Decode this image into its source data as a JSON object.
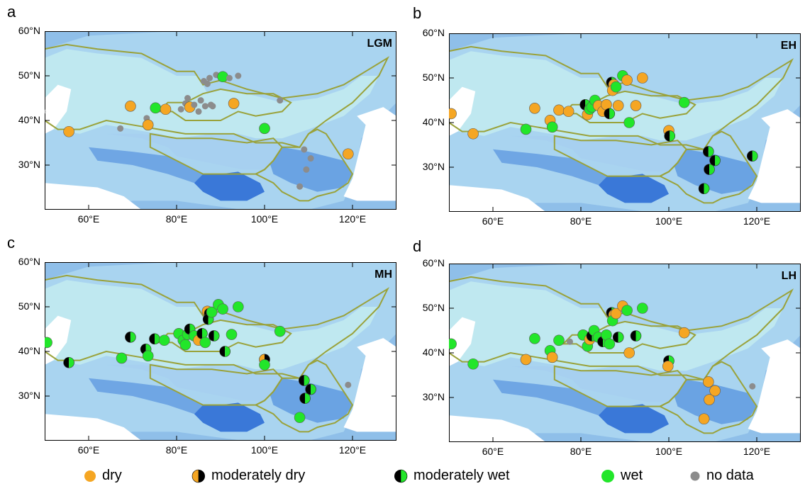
{
  "panels": [
    {
      "letter": "a",
      "title": "LGM",
      "lat_labels": [
        "60°N",
        "50°N",
        "40°N",
        "30°N"
      ],
      "lon_labels": [
        "60°E",
        "80°E",
        "100°E",
        "120°E"
      ],
      "sites": [
        {
          "lon": 49.5,
          "lat": 42.0,
          "c": "nodata"
        },
        {
          "lon": 55.5,
          "lat": 37.5,
          "c": "dry"
        },
        {
          "lon": 67.2,
          "lat": 38.2,
          "c": "nodata"
        },
        {
          "lon": 69.5,
          "lat": 43.2,
          "c": "dry"
        },
        {
          "lon": 73.2,
          "lat": 40.5,
          "c": "nodata"
        },
        {
          "lon": 73.5,
          "lat": 39.0,
          "c": "dry"
        },
        {
          "lon": 75.2,
          "lat": 42.8,
          "c": "wet"
        },
        {
          "lon": 77.5,
          "lat": 42.5,
          "c": "dry"
        },
        {
          "lon": 81.0,
          "lat": 42.5,
          "c": "nodata"
        },
        {
          "lon": 82.0,
          "lat": 43.8,
          "c": "nodata"
        },
        {
          "lon": 82.5,
          "lat": 45.0,
          "c": "nodata"
        },
        {
          "lon": 83.0,
          "lat": 43.0,
          "c": "dry"
        },
        {
          "lon": 84.0,
          "lat": 43.5,
          "c": "nodata"
        },
        {
          "lon": 85.0,
          "lat": 42.0,
          "c": "nodata"
        },
        {
          "lon": 85.5,
          "lat": 44.5,
          "c": "nodata"
        },
        {
          "lon": 86.5,
          "lat": 43.2,
          "c": "nodata"
        },
        {
          "lon": 86.2,
          "lat": 48.8,
          "c": "nodata"
        },
        {
          "lon": 87.0,
          "lat": 48.2,
          "c": "nodata"
        },
        {
          "lon": 87.8,
          "lat": 43.5,
          "c": "nodata"
        },
        {
          "lon": 88.2,
          "lat": 43.2,
          "c": "nodata"
        },
        {
          "lon": 87.5,
          "lat": 49.5,
          "c": "nodata"
        },
        {
          "lon": 89.0,
          "lat": 50.2,
          "c": "nodata"
        },
        {
          "lon": 90.5,
          "lat": 49.8,
          "c": "wet"
        },
        {
          "lon": 92.0,
          "lat": 49.5,
          "c": "nodata"
        },
        {
          "lon": 93.0,
          "lat": 43.8,
          "c": "dry"
        },
        {
          "lon": 94.0,
          "lat": 50.0,
          "c": "nodata"
        },
        {
          "lon": 100.0,
          "lat": 38.2,
          "c": "wet"
        },
        {
          "lon": 103.5,
          "lat": 44.5,
          "c": "nodata"
        },
        {
          "lon": 109.0,
          "lat": 33.5,
          "c": "nodata"
        },
        {
          "lon": 110.5,
          "lat": 31.5,
          "c": "nodata"
        },
        {
          "lon": 109.5,
          "lat": 29.0,
          "c": "nodata"
        },
        {
          "lon": 108.0,
          "lat": 25.2,
          "c": "nodata"
        },
        {
          "lon": 119.0,
          "lat": 32.5,
          "c": "dry"
        }
      ]
    },
    {
      "letter": "b",
      "title": "EH",
      "lat_labels": [
        "60°N",
        "50°N",
        "40°N",
        "30°N"
      ],
      "lon_labels": [
        "60°E",
        "80°E",
        "100°E",
        "120°E"
      ],
      "sites": [
        {
          "lon": 50.5,
          "lat": 42.0,
          "c": "dry"
        },
        {
          "lon": 55.5,
          "lat": 37.5,
          "c": "dry"
        },
        {
          "lon": 67.5,
          "lat": 38.5,
          "c": "wet"
        },
        {
          "lon": 69.5,
          "lat": 43.2,
          "c": "dry"
        },
        {
          "lon": 73.0,
          "lat": 40.5,
          "c": "dry"
        },
        {
          "lon": 73.5,
          "lat": 39.0,
          "c": "wet"
        },
        {
          "lon": 75.0,
          "lat": 42.8,
          "c": "dry"
        },
        {
          "lon": 77.2,
          "lat": 42.5,
          "c": "dry"
        },
        {
          "lon": 81.0,
          "lat": 44.0,
          "c": "mwet"
        },
        {
          "lon": 81.5,
          "lat": 41.8,
          "c": "dry"
        },
        {
          "lon": 82.0,
          "lat": 43.0,
          "c": "wet"
        },
        {
          "lon": 82.5,
          "lat": 43.5,
          "c": "wet"
        },
        {
          "lon": 83.2,
          "lat": 45.0,
          "c": "wet"
        },
        {
          "lon": 84.0,
          "lat": 43.8,
          "c": "dry"
        },
        {
          "lon": 85.0,
          "lat": 42.5,
          "c": "dry"
        },
        {
          "lon": 85.8,
          "lat": 44.0,
          "c": "dry"
        },
        {
          "lon": 86.5,
          "lat": 42.0,
          "c": "mwet"
        },
        {
          "lon": 87.0,
          "lat": 49.0,
          "c": "mwet"
        },
        {
          "lon": 87.5,
          "lat": 48.5,
          "c": "dry"
        },
        {
          "lon": 87.2,
          "lat": 47.2,
          "c": "dry"
        },
        {
          "lon": 88.0,
          "lat": 48.0,
          "c": "wet"
        },
        {
          "lon": 88.5,
          "lat": 43.8,
          "c": "dry"
        },
        {
          "lon": 89.5,
          "lat": 50.5,
          "c": "wet"
        },
        {
          "lon": 90.5,
          "lat": 49.5,
          "c": "dry"
        },
        {
          "lon": 91.0,
          "lat": 40.0,
          "c": "wet"
        },
        {
          "lon": 92.5,
          "lat": 43.8,
          "c": "dry"
        },
        {
          "lon": 94.0,
          "lat": 50.0,
          "c": "dry"
        },
        {
          "lon": 100.0,
          "lat": 38.2,
          "c": "dry"
        },
        {
          "lon": 100.2,
          "lat": 37.0,
          "c": "mwet"
        },
        {
          "lon": 103.5,
          "lat": 44.5,
          "c": "wet"
        },
        {
          "lon": 109.0,
          "lat": 33.5,
          "c": "mwet"
        },
        {
          "lon": 110.5,
          "lat": 31.5,
          "c": "mwet"
        },
        {
          "lon": 109.2,
          "lat": 29.5,
          "c": "mwet"
        },
        {
          "lon": 108.0,
          "lat": 25.2,
          "c": "mwet"
        },
        {
          "lon": 119.0,
          "lat": 32.5,
          "c": "mwet"
        }
      ]
    },
    {
      "letter": "c",
      "title": "MH",
      "lat_labels": [
        "60°N",
        "50°N",
        "40°N",
        "30°N"
      ],
      "lon_labels": [
        "60°E",
        "80°E",
        "100°E",
        "120°E"
      ],
      "sites": [
        {
          "lon": 50.5,
          "lat": 42.0,
          "c": "wet"
        },
        {
          "lon": 55.5,
          "lat": 37.5,
          "c": "mwet"
        },
        {
          "lon": 67.5,
          "lat": 38.5,
          "c": "wet"
        },
        {
          "lon": 69.5,
          "lat": 43.2,
          "c": "mwet"
        },
        {
          "lon": 73.0,
          "lat": 40.5,
          "c": "mwet"
        },
        {
          "lon": 73.5,
          "lat": 39.0,
          "c": "wet"
        },
        {
          "lon": 75.0,
          "lat": 42.8,
          "c": "mwet"
        },
        {
          "lon": 77.2,
          "lat": 42.5,
          "c": "wet"
        },
        {
          "lon": 80.5,
          "lat": 44.0,
          "c": "wet"
        },
        {
          "lon": 81.5,
          "lat": 42.5,
          "c": "wet"
        },
        {
          "lon": 82.0,
          "lat": 41.5,
          "c": "wet"
        },
        {
          "lon": 82.5,
          "lat": 43.8,
          "c": "wet"
        },
        {
          "lon": 83.0,
          "lat": 45.0,
          "c": "mwet"
        },
        {
          "lon": 84.0,
          "lat": 43.5,
          "c": "wet"
        },
        {
          "lon": 85.0,
          "lat": 42.5,
          "c": "dry"
        },
        {
          "lon": 85.8,
          "lat": 44.0,
          "c": "mwet"
        },
        {
          "lon": 86.5,
          "lat": 42.0,
          "c": "wet"
        },
        {
          "lon": 87.0,
          "lat": 49.0,
          "c": "dry"
        },
        {
          "lon": 87.5,
          "lat": 48.5,
          "c": "mwet"
        },
        {
          "lon": 87.2,
          "lat": 47.2,
          "c": "mwet"
        },
        {
          "lon": 88.0,
          "lat": 48.8,
          "c": "wet"
        },
        {
          "lon": 88.5,
          "lat": 43.5,
          "c": "mwet"
        },
        {
          "lon": 89.5,
          "lat": 50.5,
          "c": "wet"
        },
        {
          "lon": 90.5,
          "lat": 49.5,
          "c": "wet"
        },
        {
          "lon": 91.0,
          "lat": 40.0,
          "c": "mwet"
        },
        {
          "lon": 92.5,
          "lat": 43.8,
          "c": "wet"
        },
        {
          "lon": 94.0,
          "lat": 50.0,
          "c": "wet"
        },
        {
          "lon": 100.0,
          "lat": 38.2,
          "c": "mdry"
        },
        {
          "lon": 100.0,
          "lat": 37.0,
          "c": "wet"
        },
        {
          "lon": 103.5,
          "lat": 44.5,
          "c": "wet"
        },
        {
          "lon": 109.0,
          "lat": 33.5,
          "c": "mwet"
        },
        {
          "lon": 110.5,
          "lat": 31.5,
          "c": "mwet"
        },
        {
          "lon": 109.2,
          "lat": 29.5,
          "c": "mwet"
        },
        {
          "lon": 108.0,
          "lat": 25.2,
          "c": "wet"
        },
        {
          "lon": 119.0,
          "lat": 32.5,
          "c": "nodata"
        }
      ]
    },
    {
      "letter": "d",
      "title": "LH",
      "lat_labels": [
        "60°N",
        "50°N",
        "40°N",
        "30°N"
      ],
      "lon_labels": [
        "60°E",
        "80°E",
        "100°E",
        "120°E"
      ],
      "sites": [
        {
          "lon": 50.5,
          "lat": 42.0,
          "c": "wet"
        },
        {
          "lon": 55.5,
          "lat": 37.5,
          "c": "wet"
        },
        {
          "lon": 67.5,
          "lat": 38.5,
          "c": "dry"
        },
        {
          "lon": 69.5,
          "lat": 43.2,
          "c": "wet"
        },
        {
          "lon": 73.0,
          "lat": 40.5,
          "c": "wet"
        },
        {
          "lon": 73.5,
          "lat": 39.0,
          "c": "dry"
        },
        {
          "lon": 75.0,
          "lat": 42.8,
          "c": "wet"
        },
        {
          "lon": 77.5,
          "lat": 42.5,
          "c": "nodata"
        },
        {
          "lon": 80.5,
          "lat": 44.0,
          "c": "wet"
        },
        {
          "lon": 81.5,
          "lat": 41.5,
          "c": "wet"
        },
        {
          "lon": 82.0,
          "lat": 43.0,
          "c": "dry"
        },
        {
          "lon": 82.5,
          "lat": 43.8,
          "c": "mwet"
        },
        {
          "lon": 83.0,
          "lat": 45.0,
          "c": "wet"
        },
        {
          "lon": 84.0,
          "lat": 43.5,
          "c": "wet"
        },
        {
          "lon": 85.0,
          "lat": 42.5,
          "c": "mwet"
        },
        {
          "lon": 85.8,
          "lat": 44.0,
          "c": "wet"
        },
        {
          "lon": 86.5,
          "lat": 42.0,
          "c": "wet"
        },
        {
          "lon": 87.0,
          "lat": 49.0,
          "c": "mwet"
        },
        {
          "lon": 87.5,
          "lat": 48.5,
          "c": "dry"
        },
        {
          "lon": 87.2,
          "lat": 47.2,
          "c": "wet"
        },
        {
          "lon": 88.0,
          "lat": 48.8,
          "c": "dry"
        },
        {
          "lon": 88.5,
          "lat": 43.5,
          "c": "mwet"
        },
        {
          "lon": 89.5,
          "lat": 50.5,
          "c": "dry"
        },
        {
          "lon": 90.5,
          "lat": 49.5,
          "c": "wet"
        },
        {
          "lon": 91.0,
          "lat": 40.0,
          "c": "dry"
        },
        {
          "lon": 92.5,
          "lat": 43.8,
          "c": "mwet"
        },
        {
          "lon": 94.0,
          "lat": 50.0,
          "c": "wet"
        },
        {
          "lon": 100.0,
          "lat": 38.2,
          "c": "mwet"
        },
        {
          "lon": 99.8,
          "lat": 37.0,
          "c": "dry"
        },
        {
          "lon": 103.5,
          "lat": 44.5,
          "c": "dry"
        },
        {
          "lon": 109.0,
          "lat": 33.5,
          "c": "dry"
        },
        {
          "lon": 110.5,
          "lat": 31.5,
          "c": "dry"
        },
        {
          "lon": 109.2,
          "lat": 29.5,
          "c": "dry"
        },
        {
          "lon": 108.0,
          "lat": 25.2,
          "c": "dry"
        },
        {
          "lon": 119.0,
          "lat": 32.5,
          "c": "nodata"
        }
      ]
    }
  ],
  "extent": {
    "lon_min": 50,
    "lon_max": 130,
    "lat_min": 20,
    "lat_max": 60
  },
  "legend": [
    {
      "key": "dry",
      "label": "dry"
    },
    {
      "key": "mdry",
      "label": "moderately dry"
    },
    {
      "key": "mwet",
      "label": "moderately wet"
    },
    {
      "key": "wet",
      "label": "wet"
    },
    {
      "key": "nodata",
      "label": "no data"
    }
  ],
  "colors": {
    "dry": "#f5a623",
    "wet": "#22e62a",
    "nodata": "#8c8c8c",
    "black": "#000000",
    "land": "#a9d4f0",
    "plateau_light": "#bfe8f0",
    "deep": "#3a78d8",
    "boundary": "#9aa23a"
  }
}
